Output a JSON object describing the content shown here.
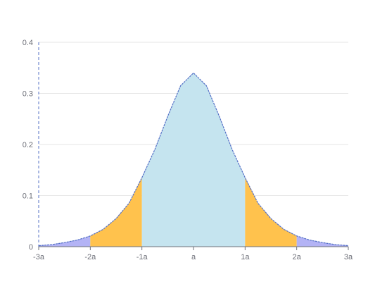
{
  "chart_data": {
    "type": "area",
    "title": "",
    "xlabel": "",
    "ylabel": "",
    "x_ticks": [
      "-3a",
      "-2a",
      "-1a",
      "a",
      "1a",
      "2a",
      "3a"
    ],
    "x_tick_positions": [
      -3,
      -2,
      -1,
      0,
      1,
      2,
      3
    ],
    "y_ticks": [
      "0",
      "0.1",
      "0.2",
      "0.3",
      "0.4"
    ],
    "y_tick_values": [
      0,
      0.1,
      0.2,
      0.3,
      0.4
    ],
    "xlim": [
      -3,
      3
    ],
    "ylim": [
      0,
      0.4
    ],
    "grid": "horizontal",
    "curve": {
      "x": [
        -3,
        -2.75,
        -2.5,
        -2.25,
        -2,
        -1.75,
        -1.5,
        -1.25,
        -1,
        -0.75,
        -0.5,
        -0.25,
        0,
        0.25,
        0.5,
        0.75,
        1,
        1.25,
        1.5,
        1.75,
        2,
        2.25,
        2.5,
        2.75,
        3
      ],
      "y": [
        0.002,
        0.004,
        0.008,
        0.013,
        0.021,
        0.034,
        0.055,
        0.085,
        0.135,
        0.19,
        0.255,
        0.315,
        0.34,
        0.315,
        0.255,
        0.19,
        0.135,
        0.085,
        0.055,
        0.034,
        0.021,
        0.013,
        0.008,
        0.004,
        0.002
      ]
    },
    "bands": [
      {
        "from": -3,
        "to": -2,
        "color": "#b3b3f5"
      },
      {
        "from": -2,
        "to": -1,
        "color": "#ffc24d"
      },
      {
        "from": -1,
        "to": 1,
        "color": "#c5e4ef"
      },
      {
        "from": 1,
        "to": 2,
        "color": "#ffc24d"
      },
      {
        "from": 2,
        "to": 3,
        "color": "#b3b3f5"
      }
    ],
    "line_color": "#5470c6",
    "axis_color": "#5470c6",
    "grid_color": "#e6e6e6"
  }
}
